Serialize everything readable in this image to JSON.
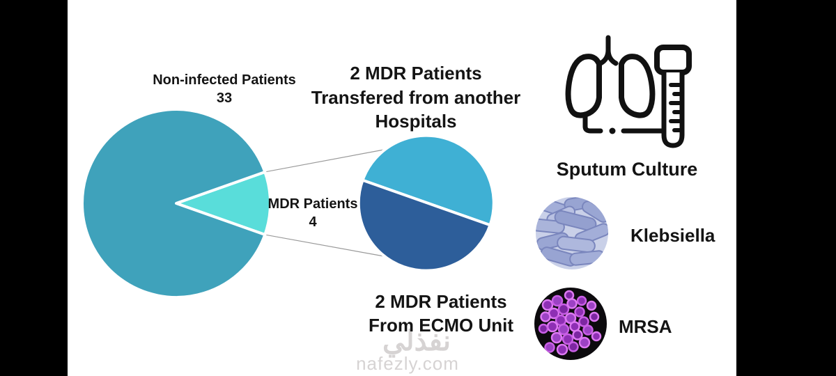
{
  "figure": {
    "big_pie_label": "Non-infected Patients\n33",
    "slice_label": "MDR Patients\n4",
    "transfer_label": "2 MDR Patients\nTransfered from another\nHospitals",
    "ecmo_label": "2 MDR Patients\nFrom ECMO Unit",
    "sputum_label": "Sputum Culture",
    "klebsiella_label": "Klebsiella",
    "mrsa_label": "MRSA"
  },
  "watermark": {
    "arabic": "نفذلي",
    "site": "nafezly.com"
  },
  "icons": {
    "lungs_culture": "lungs-with-culture-tube-icon",
    "klebsiella_photo": "klebsiella-rod-bacteria-micrograph",
    "mrsa_photo": "mrsa-cocci-bacteria-micrograph"
  },
  "colors": {
    "big_pie_main": "#3fa2bb",
    "big_pie_slice": "#59ddda",
    "small_pie_top": "#3fb0d4",
    "small_pie_bottom": "#2d5e9a",
    "letterbox": "#000000",
    "leader_line": "#999999",
    "text": "#141414",
    "watermark_gray": "#d6d3d3"
  },
  "chart_data": [
    {
      "type": "pie",
      "name": "patient-overview-pie",
      "title": "",
      "total": 37,
      "start_angle_deg": -19.46,
      "slices": [
        {
          "label": "MDR Patients",
          "value": 4,
          "color": "#59ddda"
        },
        {
          "label": "Non-infected Patients",
          "value": 33,
          "color": "#3fa2bb"
        }
      ],
      "legend": "none",
      "labels": "outside"
    },
    {
      "type": "pie",
      "name": "mdr-breakdown-pie",
      "title": "",
      "total": 4,
      "start_angle_deg": -19.4,
      "slices": [
        {
          "label": "2 MDR Patients Transfered from another Hospitals",
          "value": 2,
          "color": "#3fb0d4"
        },
        {
          "label": "2 MDR Patients From ECMO Unit",
          "value": 2,
          "color": "#2d5e9a"
        }
      ],
      "legend": "none",
      "labels": "outside"
    }
  ]
}
